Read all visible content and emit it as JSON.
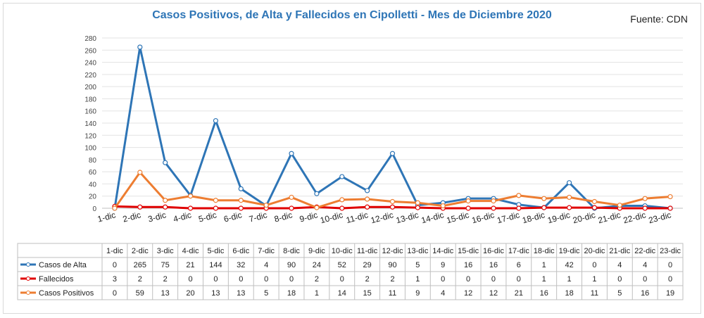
{
  "chart_data": {
    "type": "line",
    "title": "Casos Positivos, de Alta y Fallecidos en Cipolletti - Mes de Diciembre 2020",
    "source": "Fuente: CDN",
    "categories": [
      "1-dic",
      "2-dic",
      "3-dic",
      "4-dic",
      "5-dic",
      "6-dic",
      "7-dic",
      "8-dic",
      "9-dic",
      "10-dic",
      "11-dic",
      "12-dic",
      "13-dic",
      "14-dic",
      "15-dic",
      "16-dic",
      "17-dic",
      "18-dic",
      "19-dic",
      "20-dic",
      "21-dic",
      "22-dic",
      "23-dic"
    ],
    "series": [
      {
        "name": "Casos de Alta",
        "color": "#2e75b6",
        "values": [
          0,
          265,
          75,
          21,
          144,
          32,
          4,
          90,
          24,
          52,
          29,
          90,
          5,
          9,
          16,
          16,
          6,
          1,
          42,
          0,
          4,
          4,
          0
        ]
      },
      {
        "name": "Fallecidos",
        "color": "#e00000",
        "values": [
          3,
          2,
          2,
          0,
          0,
          0,
          0,
          0,
          2,
          0,
          2,
          2,
          1,
          0,
          0,
          0,
          0,
          1,
          1,
          1,
          0,
          0,
          0
        ]
      },
      {
        "name": "Casos Positivos",
        "color": "#ed7d31",
        "values": [
          0,
          59,
          13,
          20,
          13,
          13,
          5,
          18,
          1,
          14,
          15,
          11,
          9,
          4,
          12,
          12,
          21,
          16,
          18,
          11,
          5,
          16,
          19
        ]
      }
    ],
    "ylim": [
      0,
      280
    ],
    "yticks": [
      0,
      20,
      40,
      60,
      80,
      100,
      120,
      140,
      160,
      180,
      200,
      220,
      240,
      260,
      280
    ],
    "grid": true,
    "legend": "data-table-below"
  }
}
